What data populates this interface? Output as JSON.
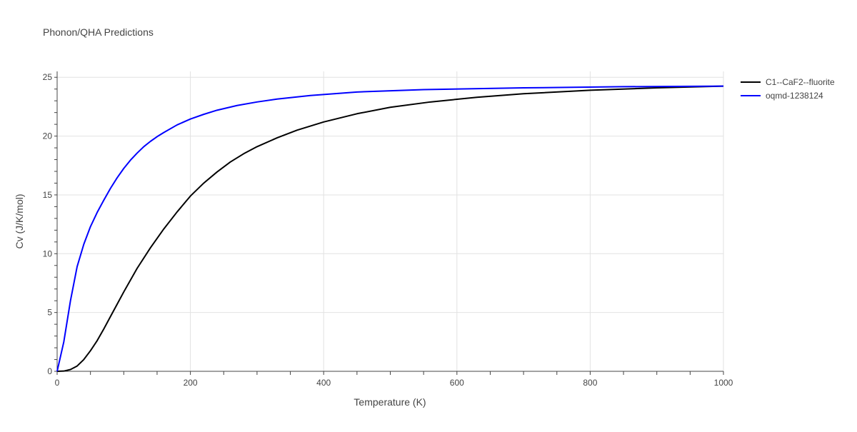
{
  "chart_data": {
    "type": "line",
    "title": "Phonon/QHA Predictions",
    "xlabel": "Temperature (K)",
    "ylabel": "Cv (J/K/mol)",
    "xlim": [
      0,
      1000
    ],
    "ylim": [
      0,
      25.5
    ],
    "x_ticks": [
      0,
      200,
      400,
      600,
      800,
      1000
    ],
    "y_ticks": [
      0,
      5,
      10,
      15,
      20,
      25
    ],
    "grid": true,
    "legend_position": "top-right, outside plot",
    "series": [
      {
        "name": "C1--CaF2--fluorite",
        "color": "#000000",
        "x": [
          0,
          10,
          20,
          30,
          40,
          50,
          60,
          70,
          80,
          90,
          100,
          120,
          140,
          160,
          180,
          200,
          220,
          240,
          260,
          280,
          300,
          330,
          360,
          400,
          450,
          500,
          560,
          630,
          700,
          800,
          900,
          1000
        ],
        "y": [
          0,
          0.02,
          0.15,
          0.45,
          1.0,
          1.75,
          2.6,
          3.6,
          4.65,
          5.7,
          6.75,
          8.75,
          10.5,
          12.1,
          13.55,
          14.9,
          16.0,
          16.95,
          17.8,
          18.5,
          19.1,
          19.85,
          20.5,
          21.2,
          21.9,
          22.45,
          22.9,
          23.3,
          23.6,
          23.9,
          24.1,
          24.25
        ]
      },
      {
        "name": "oqmd-1238124",
        "color": "#0000ff",
        "x": [
          0,
          10,
          20,
          30,
          40,
          50,
          60,
          70,
          80,
          90,
          100,
          110,
          120,
          130,
          140,
          150,
          160,
          180,
          200,
          220,
          240,
          270,
          300,
          330,
          380,
          450,
          550,
          700,
          850,
          1000
        ],
        "y": [
          0,
          2.5,
          6.0,
          8.9,
          10.8,
          12.3,
          13.5,
          14.55,
          15.55,
          16.45,
          17.25,
          17.95,
          18.55,
          19.1,
          19.55,
          19.95,
          20.3,
          20.95,
          21.45,
          21.85,
          22.2,
          22.6,
          22.9,
          23.15,
          23.45,
          23.75,
          23.95,
          24.1,
          24.2,
          24.25
        ]
      }
    ]
  }
}
